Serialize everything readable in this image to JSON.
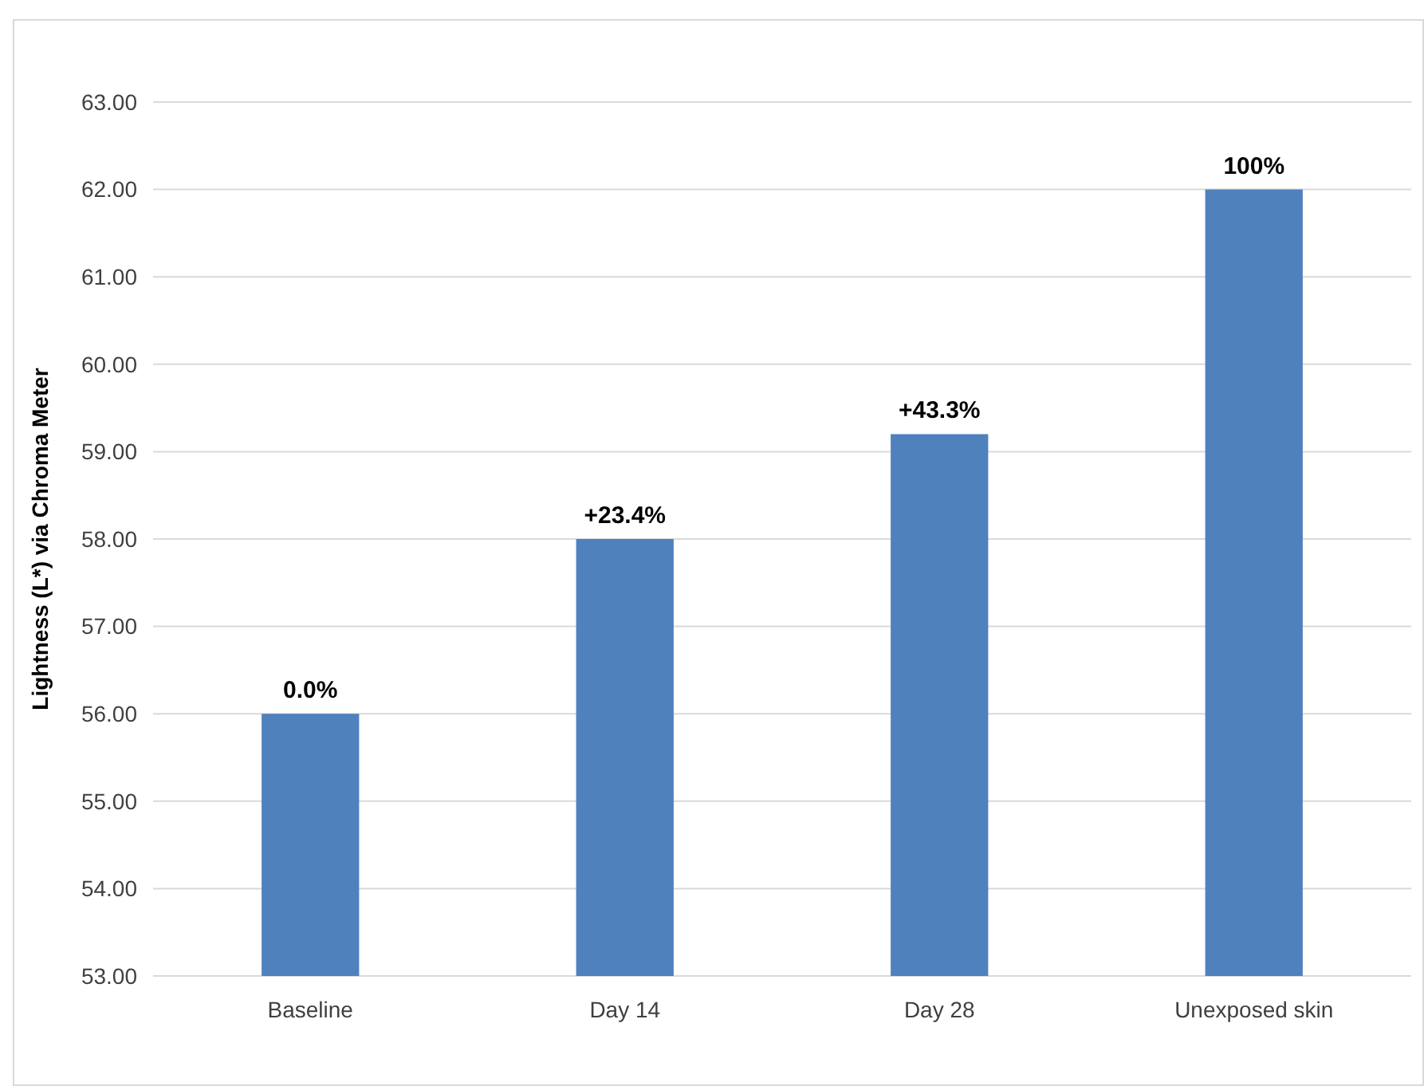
{
  "chart_data": {
    "type": "bar",
    "ylabel": "Lightness (L*) via Chroma Meter",
    "categories": [
      "Baseline",
      "Day 14",
      "Day 28",
      "Unexposed skin"
    ],
    "values": [
      56.0,
      58.0,
      59.2,
      62.0
    ],
    "color": "#4f81bd",
    "annotations": [
      {
        "text": "0.0%",
        "x": "Baseline",
        "y": 56.0
      },
      {
        "text": "+23.4%",
        "x": "Day 14",
        "y": 58.0
      },
      {
        "text": "+43.3%",
        "x": "Day 28",
        "y": 59.2
      },
      {
        "text": "100%",
        "x": "Unexposed skin",
        "y": 62.0
      }
    ],
    "ylim": [
      53,
      63
    ],
    "yticks": [
      {
        "value": 53,
        "label": "53.00"
      },
      {
        "value": 54,
        "label": "54.00"
      },
      {
        "value": 55,
        "label": "55.00"
      },
      {
        "value": 56,
        "label": "56.00"
      },
      {
        "value": 57,
        "label": "57.00"
      },
      {
        "value": 58,
        "label": "58.00"
      },
      {
        "value": 59,
        "label": "59.00"
      },
      {
        "value": 60,
        "label": "60.00"
      },
      {
        "value": 61,
        "label": "61.00"
      },
      {
        "value": 62,
        "label": "62.00"
      },
      {
        "value": 63,
        "label": "63.00"
      }
    ],
    "grid": "y"
  }
}
